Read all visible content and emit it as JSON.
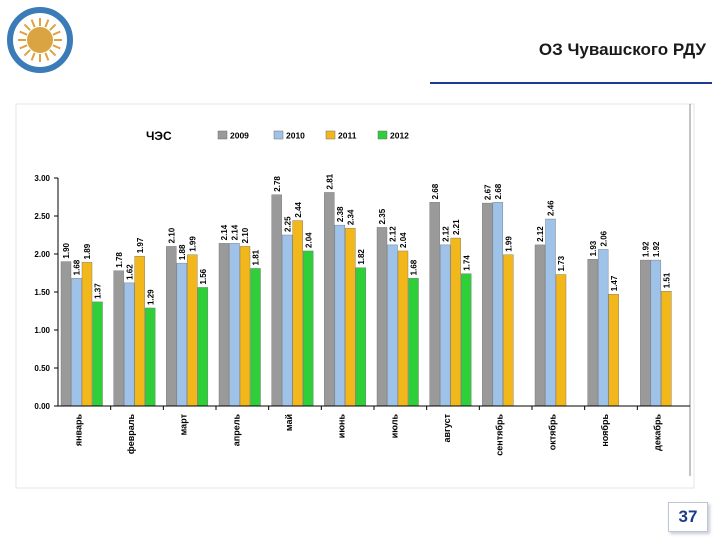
{
  "header": {
    "title": "ОЗ Чувашского РДУ"
  },
  "page_number": "37",
  "colors": {
    "accent": "#1f3b8c",
    "logo": "#3a7cb8"
  },
  "chart_data": {
    "type": "bar",
    "title": "ЧЭС",
    "xlabel": "",
    "ylabel": "",
    "ylim": [
      0,
      3
    ],
    "yticks": [
      "0.00",
      "0.50",
      "1.00",
      "1.50",
      "2.00",
      "2.50",
      "3.00"
    ],
    "grid": false,
    "legend_position": "top",
    "categories": [
      "январь",
      "февраль",
      "март",
      "апрель",
      "май",
      "июнь",
      "июль",
      "август",
      "сентябрь",
      "октябрь",
      "ноябрь",
      "декабрь"
    ],
    "series": [
      {
        "name": "2009",
        "color": "#9a9a9a",
        "values": [
          1.9,
          1.78,
          2.1,
          2.14,
          2.78,
          2.81,
          2.35,
          2.68,
          2.67,
          2.12,
          1.93,
          1.92
        ]
      },
      {
        "name": "2010",
        "color": "#9ec2e8",
        "values": [
          1.68,
          1.62,
          1.88,
          2.14,
          2.25,
          2.38,
          2.12,
          2.12,
          2.68,
          2.46,
          2.06,
          1.92
        ]
      },
      {
        "name": "2011",
        "color": "#f2b71b",
        "values": [
          1.89,
          1.97,
          1.99,
          2.1,
          2.44,
          2.34,
          2.04,
          2.21,
          1.99,
          1.73,
          1.47,
          1.51
        ]
      },
      {
        "name": "2012",
        "color": "#2fcf3a",
        "values": [
          1.37,
          1.29,
          1.56,
          1.81,
          2.04,
          1.82,
          1.68,
          1.74,
          null,
          null,
          null,
          null
        ]
      }
    ],
    "data_labels": [
      [
        "1.90",
        "1.68",
        "1.89",
        "1.37"
      ],
      [
        "1.78",
        "1.62",
        "1.97",
        "1.29"
      ],
      [
        "2.10",
        "1.88",
        "1.99",
        "1.56"
      ],
      [
        "2.14",
        "2.14",
        "2.10",
        "1.81"
      ],
      [
        "2.78",
        "2.25",
        "2.44",
        "2.04"
      ],
      [
        "2.81",
        "2.38",
        "2.34",
        "1.82"
      ],
      [
        "2.35",
        "2.12",
        "2.04",
        "1.68"
      ],
      [
        "2.68",
        "2.12",
        "2.21",
        "1.74"
      ],
      [
        "2.67",
        "2.68",
        "1.99",
        null
      ],
      [
        "2.12",
        "2.46",
        "1.73",
        null
      ],
      [
        "1.93",
        "2.06",
        "1.47",
        null
      ],
      [
        "1.92",
        "1.92",
        "1.51",
        null
      ]
    ]
  }
}
